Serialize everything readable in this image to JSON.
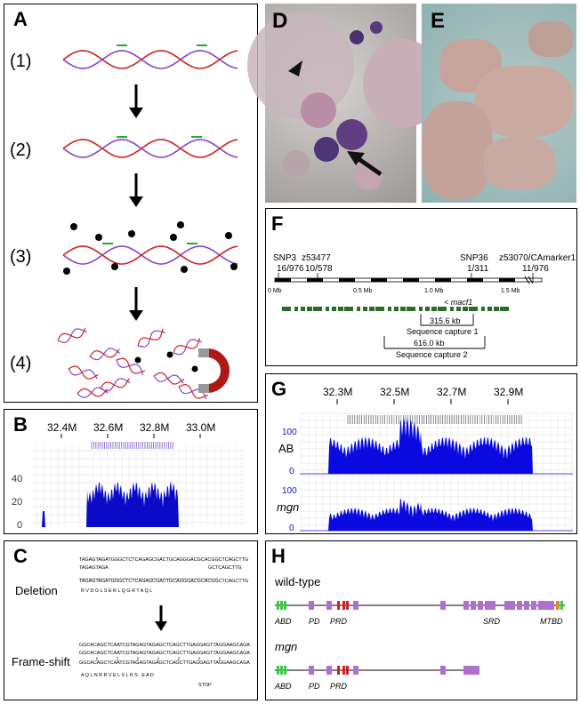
{
  "panels": {
    "A": {
      "label": "A",
      "steps": [
        "(1)",
        "(2)",
        "(3)",
        "(4)"
      ]
    },
    "B": {
      "label": "B",
      "ticks": [
        "32.4M",
        "32.6M",
        "32.8M",
        "33.0M"
      ],
      "yticks": [
        "0",
        "20",
        "40"
      ]
    },
    "C": {
      "label": "C",
      "deletion_label": "Deletion",
      "frameshift_label": "Frame-shift",
      "del_seq1": "TAGAGTAGATGGGCTCTCAGAGCGACTGCAGGGACGCACGGCTCAGCTTG",
      "del_seq2": "TAGAGTAGA",
      "del_seq2b": "GCTCAGCTTG",
      "del_seq3": "TAGAGTAGATGGGCTCTCAGAGCGACTGCAGGGACGCACGGCTCAGCTTG",
      "del_aa": "R   V   D   G   L   S   E   R   L   Q   G   R   T   A   Q   L",
      "fs_seq1": "GGCACAGCTCAATCGTAGAGTAGAGCTCAGCTTGAGGAGTTAGGAAGCAGA",
      "fs_seq2": "GGCACAGCTCAATCGTAGAGTAGAGCTCAGCTTGAGGAGTTAGGAAGCAGA",
      "fs_seq3": "GGCACAGCTCAATCGTAGAGTAGAGCTCAGCTTGAGGAGTTAGGAAGCAGA",
      "fs_aa": "A   Q   L   N   R   R   V   E   L   S   L   R   S   .   E   A   D",
      "stop": "STOP"
    },
    "D": {
      "label": "D"
    },
    "E": {
      "label": "E"
    },
    "F": {
      "label": "F",
      "markers": [
        {
          "name": "SNP3",
          "ratio": "16/976"
        },
        {
          "name": "z53477",
          "ratio": "10/578"
        },
        {
          "name": "SNP36",
          "ratio": "1/311"
        },
        {
          "name": "z53070/CAmarker1",
          "ratio": "11/976"
        }
      ],
      "scale": [
        "0 Mb",
        "0.5 Mb",
        "1.0 Mb",
        "1.5 Mb"
      ],
      "gene": "< macf1",
      "capture1_size": "315.6 kb",
      "capture1_label": "Sequence capture 1",
      "capture2_size": "616.0 kb",
      "capture2_label": "Sequence capture 2"
    },
    "G": {
      "label": "G",
      "ticks": [
        "32.3M",
        "32.5M",
        "32.7M",
        "32.9M"
      ],
      "track1": "AB",
      "track2": "mgn",
      "y100": "100",
      "y0": "0"
    },
    "H": {
      "label": "H",
      "wt_label": "wild-type",
      "mgn_label": "mgn",
      "domains_wt": [
        "ABD",
        "PD",
        "PRD",
        "SRD",
        "MTBD"
      ],
      "domains_mgn": [
        "ABD",
        "PD",
        "PRD"
      ]
    }
  },
  "colors": {
    "dna_red": "#cc2222",
    "dna_purple": "#8844cc",
    "probe_green": "#22aa33",
    "coverage_blue": "#0a0ac8",
    "exon_purple": "#b070d0",
    "abd_green": "#33cc44",
    "prd_red": "#cc2222",
    "mtbd_orange": "#e08a2a",
    "contig_green": "#2d6b2d"
  },
  "icons": [
    "arrow-down-icon",
    "magnet-icon",
    "bead-icon"
  ]
}
